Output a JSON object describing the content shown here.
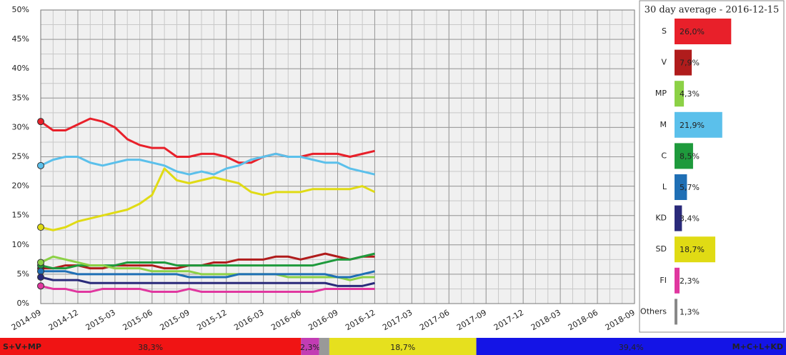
{
  "chart_data": [
    {
      "type": "line",
      "x": [
        "2014-09",
        "2014-10",
        "2014-11",
        "2014-12",
        "2015-01",
        "2015-02",
        "2015-03",
        "2015-04",
        "2015-05",
        "2015-06",
        "2015-07",
        "2015-08",
        "2015-09",
        "2015-10",
        "2015-11",
        "2015-12",
        "2016-01",
        "2016-02",
        "2016-03",
        "2016-04",
        "2016-05",
        "2016-06",
        "2016-07",
        "2016-08",
        "2016-09",
        "2016-10",
        "2016-11",
        "2016-12"
      ],
      "series": [
        {
          "color": "#e8202a",
          "values": [
            31,
            29.5,
            29.5,
            30.5,
            31.5,
            31,
            30,
            28,
            27,
            26.5,
            26.5,
            25,
            25,
            25.5,
            25.5,
            25,
            24,
            24,
            25,
            25.5,
            25,
            25,
            25.5,
            25.5,
            25.5,
            25,
            25.5,
            26
          ]
        },
        {
          "color": "#5bc0eb",
          "values": [
            23.5,
            24.5,
            25,
            25,
            24,
            23.5,
            24,
            24.5,
            24.5,
            24,
            23.5,
            22.5,
            22,
            22.5,
            22,
            23,
            23.5,
            24.5,
            25,
            25.5,
            25,
            25,
            24.5,
            24,
            24,
            23,
            22.5,
            22
          ]
        },
        {
          "color": "#e0db14",
          "values": [
            13,
            12.5,
            13,
            14,
            14.5,
            15,
            15.5,
            16,
            17,
            18.5,
            23,
            21,
            20.5,
            21,
            21.5,
            21,
            20.5,
            19,
            18.5,
            19,
            19,
            19,
            19.5,
            19.5,
            19.5,
            19.5,
            20,
            19
          ]
        },
        {
          "color": "#b01c1c",
          "values": [
            6,
            6,
            6.5,
            6.5,
            6,
            6,
            6.5,
            6.5,
            6.5,
            6.5,
            6,
            6,
            6.5,
            6.5,
            7,
            7,
            7.5,
            7.5,
            7.5,
            8,
            8,
            7.5,
            8,
            8.5,
            8,
            7.5,
            8,
            8
          ]
        },
        {
          "color": "#1e9a3c",
          "values": [
            6.5,
            6,
            6,
            6.5,
            6.5,
            6.5,
            6.5,
            7,
            7,
            7,
            7,
            6.5,
            6.5,
            6.5,
            6.5,
            6.5,
            6.5,
            6.5,
            6.5,
            6.5,
            6.5,
            6.5,
            6.5,
            7,
            7.5,
            7.5,
            8,
            8.5
          ]
        },
        {
          "color": "#8cd146",
          "values": [
            7,
            8,
            7.5,
            7,
            6.5,
            6.5,
            6,
            6,
            6,
            5.5,
            5.5,
            5.5,
            5.5,
            5,
            5,
            5,
            5,
            5,
            5,
            5,
            4.5,
            4.5,
            4.5,
            4.5,
            4.5,
            4,
            4.5,
            4.5
          ]
        },
        {
          "color": "#1f6fb5",
          "values": [
            5.5,
            5.5,
            5.5,
            5,
            5,
            5,
            5,
            5,
            5,
            5,
            5,
            5,
            4.5,
            4.5,
            4.5,
            4.5,
            5,
            5,
            5,
            5,
            5,
            5,
            5,
            5,
            4.5,
            4.5,
            5,
            5.5
          ]
        },
        {
          "color": "#2a2a7a",
          "values": [
            4.5,
            4,
            4,
            4,
            3.5,
            3.5,
            3.5,
            3.5,
            3.5,
            3.5,
            3.5,
            3.5,
            3.5,
            3.5,
            3.5,
            3.5,
            3.5,
            3.5,
            3.5,
            3.5,
            3.5,
            3.5,
            3.5,
            3.5,
            3,
            3,
            3,
            3.5
          ]
        },
        {
          "color": "#e0379f",
          "values": [
            3,
            2.5,
            2.5,
            2,
            2,
            2.5,
            2.5,
            2.5,
            2.5,
            2,
            2,
            2,
            2.5,
            2,
            2,
            2,
            2,
            2,
            2,
            2,
            2,
            2,
            2,
            2.5,
            2.5,
            2.5,
            2.5,
            2.5
          ]
        }
      ],
      "xlim": [
        "2014-09",
        "2018-09"
      ],
      "xticks": [
        "2014-09",
        "2014-12",
        "2015-03",
        "2015-06",
        "2015-09",
        "2015-12",
        "2016-03",
        "2016-06",
        "2016-09",
        "2016-12",
        "2017-03",
        "2017-06",
        "2017-09",
        "2017-12",
        "2018-03",
        "2018-06",
        "2018-09"
      ],
      "ylim": [
        0,
        50
      ],
      "yticks": [
        {
          "value": 0,
          "label": "0%"
        },
        {
          "value": 5,
          "label": "5%"
        },
        {
          "value": 10,
          "label": "10%"
        },
        {
          "value": 15,
          "label": "15%"
        },
        {
          "value": 20,
          "label": "20%"
        },
        {
          "value": 25,
          "label": "25%"
        },
        {
          "value": 30,
          "label": "30%"
        },
        {
          "value": 35,
          "label": "35%"
        },
        {
          "value": 40,
          "label": "40%"
        },
        {
          "value": 45,
          "label": "45%"
        },
        {
          "value": 50,
          "label": "50%"
        }
      ],
      "grid": true
    },
    {
      "type": "hbar",
      "title": "30 day average - 2016-12-15",
      "categories": [
        "S",
        "V",
        "MP",
        "M",
        "C",
        "L",
        "KD",
        "SD",
        "FI",
        "Others"
      ],
      "values": [
        26.0,
        7.9,
        4.3,
        21.9,
        8.5,
        5.7,
        3.4,
        18.7,
        2.3,
        1.3
      ],
      "value_labels": [
        "26,0%",
        "7,9%",
        "4,3%",
        "21,9%",
        "8,5%",
        "5,7%",
        "3,4%",
        "18,7%",
        "2,3%",
        "1,3%"
      ],
      "colors": [
        "#e8202a",
        "#b01c1c",
        "#8cd146",
        "#5bc0eb",
        "#1e9a3c",
        "#1f6fb5",
        "#2a2a7a",
        "#e0db14",
        "#e0379f",
        "#888888"
      ]
    },
    {
      "type": "stacked_bar",
      "left_label": "S+V+MP",
      "right_label": "M+C+L+KD",
      "values": [
        38.3,
        2.3,
        1.3,
        18.7,
        39.4
      ],
      "value_labels": [
        "38,3%",
        "2,3%",
        null,
        "18,7%",
        "39,4%"
      ],
      "colors": [
        "#f01414",
        "#c23cb4",
        "#999999",
        "#e6e01e",
        "#1414e6"
      ]
    }
  ]
}
